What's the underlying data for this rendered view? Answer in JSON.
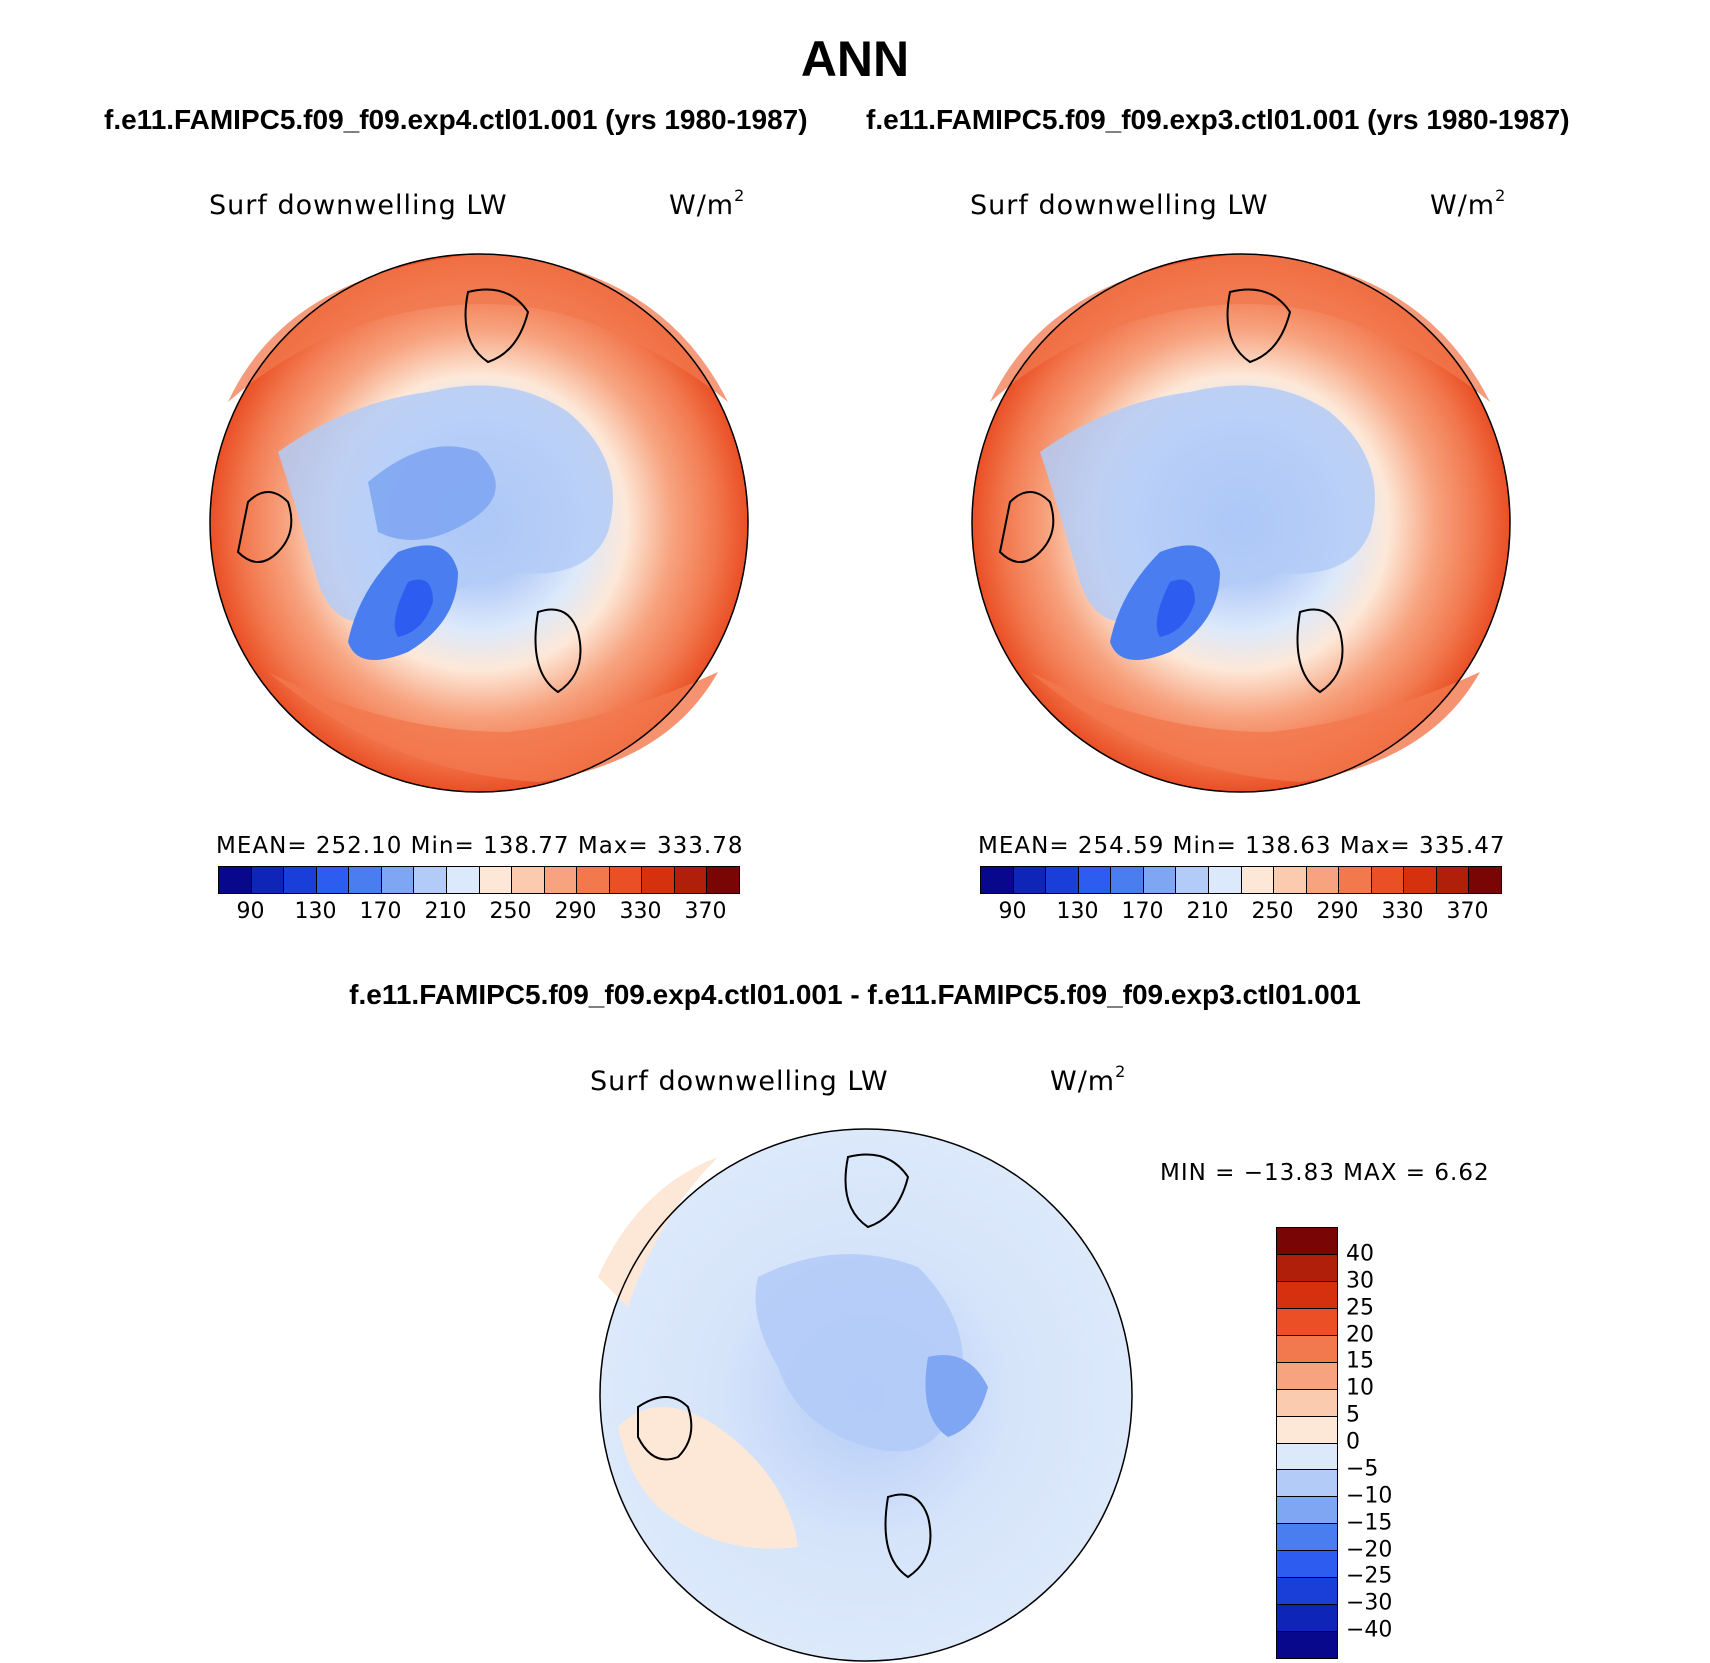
{
  "figure": {
    "season": "ANN",
    "case1_title": "f.e11.FAMIPC5.f09_f09.exp4.ctl01.001 (yrs 1980-1987)",
    "case2_title": "f.e11.FAMIPC5.f09_f09.exp3.ctl01.001 (yrs 1980-1987)",
    "diff_title": "f.e11.FAMIPC5.f09_f09.exp4.ctl01.001 - f.e11.FAMIPC5.f09_f09.exp3.ctl01.001"
  },
  "panels": {
    "left": {
      "variable": "Surf downwelling LW",
      "units_base": "W/m",
      "units_exp": "2",
      "stats": "MEAN= 252.10   Min= 138.77   Max= 333.78"
    },
    "right": {
      "variable": "Surf downwelling LW",
      "units_base": "W/m",
      "units_exp": "2",
      "stats": "MEAN= 254.59   Min= 138.63   Max= 335.47"
    },
    "diff": {
      "variable": "Surf downwelling LW",
      "units_base": "W/m",
      "units_exp": "2",
      "stats": "MIN = −13.83  MAX =    6.62"
    }
  },
  "colorbar_abs": {
    "colors": [
      "#08088c",
      "#0f25b8",
      "#1a3fd8",
      "#2d5cf0",
      "#4a7ef0",
      "#7fa6f2",
      "#b3cbf7",
      "#dce9fb",
      "#fde8d8",
      "#fbcbb0",
      "#f7a37f",
      "#f2784e",
      "#ea4f25",
      "#d6310f",
      "#b01f0a",
      "#7a0505"
    ],
    "ticks": [
      "90",
      "130",
      "170",
      "210",
      "250",
      "290",
      "330",
      "370"
    ]
  },
  "colorbar_diff": {
    "colors": [
      "#7a0505",
      "#b01f0a",
      "#d6310f",
      "#ea4f25",
      "#f2784e",
      "#f7a37f",
      "#fbcbb0",
      "#fde8d8",
      "#dce9fb",
      "#b3cbf7",
      "#7fa6f2",
      "#4a7ef0",
      "#2d5cf0",
      "#1a3fd8",
      "#0f25b8",
      "#08088c"
    ],
    "ticks": [
      "40",
      "30",
      "25",
      "20",
      "15",
      "10",
      "5",
      "0",
      "−5",
      "−10",
      "−15",
      "−20",
      "−25",
      "−30",
      "−40"
    ]
  }
}
